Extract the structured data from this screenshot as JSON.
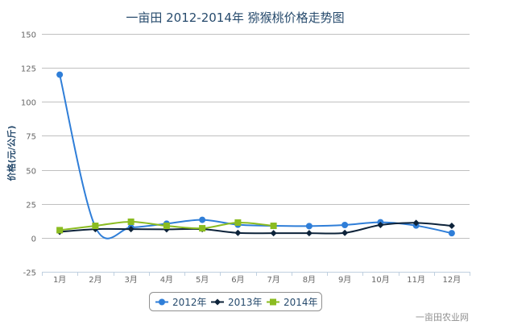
{
  "chart_data": {
    "type": "line",
    "title": "一亩田 2012-2014年 猕猴桃价格走势图",
    "xlabel": "",
    "ylabel": "价格(元/公斤)",
    "categories": [
      "1月",
      "2月",
      "3月",
      "4月",
      "5月",
      "6月",
      "7月",
      "8月",
      "9月",
      "10月",
      "11月",
      "12月"
    ],
    "ylim": [
      -25,
      150
    ],
    "yticks": [
      150,
      125,
      100,
      75,
      50,
      25,
      0,
      -25
    ],
    "grid": true,
    "legend": "bottom",
    "series": [
      {
        "name": "2012年",
        "color": "#2f7ed8",
        "marker": "circle",
        "values": [
          120,
          8,
          7.6,
          10.4,
          13.2,
          9.6,
          8.8,
          8.6,
          9.4,
          11.4,
          9,
          3.4
        ]
      },
      {
        "name": "2013年",
        "color": "#0d233a",
        "marker": "diamond",
        "values": [
          4.4,
          6.4,
          6.4,
          6.2,
          6.4,
          3.6,
          3.4,
          3.4,
          3.6,
          9.4,
          11,
          8.8
        ]
      },
      {
        "name": "2014年",
        "color": "#8bbc21",
        "marker": "square",
        "values": [
          5.6,
          8.8,
          11.8,
          8.8,
          7,
          11.2,
          8.8,
          null,
          null,
          null,
          null,
          null
        ]
      }
    ]
  },
  "credit": "一亩田农业网"
}
